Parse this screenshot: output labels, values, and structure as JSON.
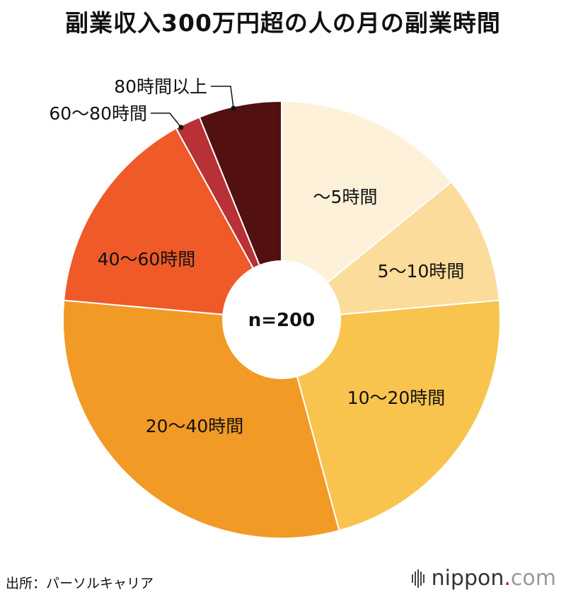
{
  "title": "副業収入300万円超の人の月の副業時間",
  "source": "出所：パーソルキャリア",
  "logo": {
    "name": "nippon",
    "dot": ".",
    "suffix": "com"
  },
  "chart_data": {
    "type": "pie",
    "center_label": "n=200",
    "categories": [
      "〜5時間",
      "5〜10時間",
      "10〜20時間",
      "20〜40時間",
      "40〜60時間",
      "60〜80時間",
      "80時間以上"
    ],
    "values": [
      15.0,
      10.0,
      23.5,
      32.5,
      16.5,
      2.0,
      6.5
    ],
    "colors": [
      "#FDF1D9",
      "#FBDC9A",
      "#F8C44E",
      "#F29A26",
      "#EF5A28",
      "#B83136",
      "#521011"
    ],
    "label_color": "#111111",
    "legend": "none"
  }
}
